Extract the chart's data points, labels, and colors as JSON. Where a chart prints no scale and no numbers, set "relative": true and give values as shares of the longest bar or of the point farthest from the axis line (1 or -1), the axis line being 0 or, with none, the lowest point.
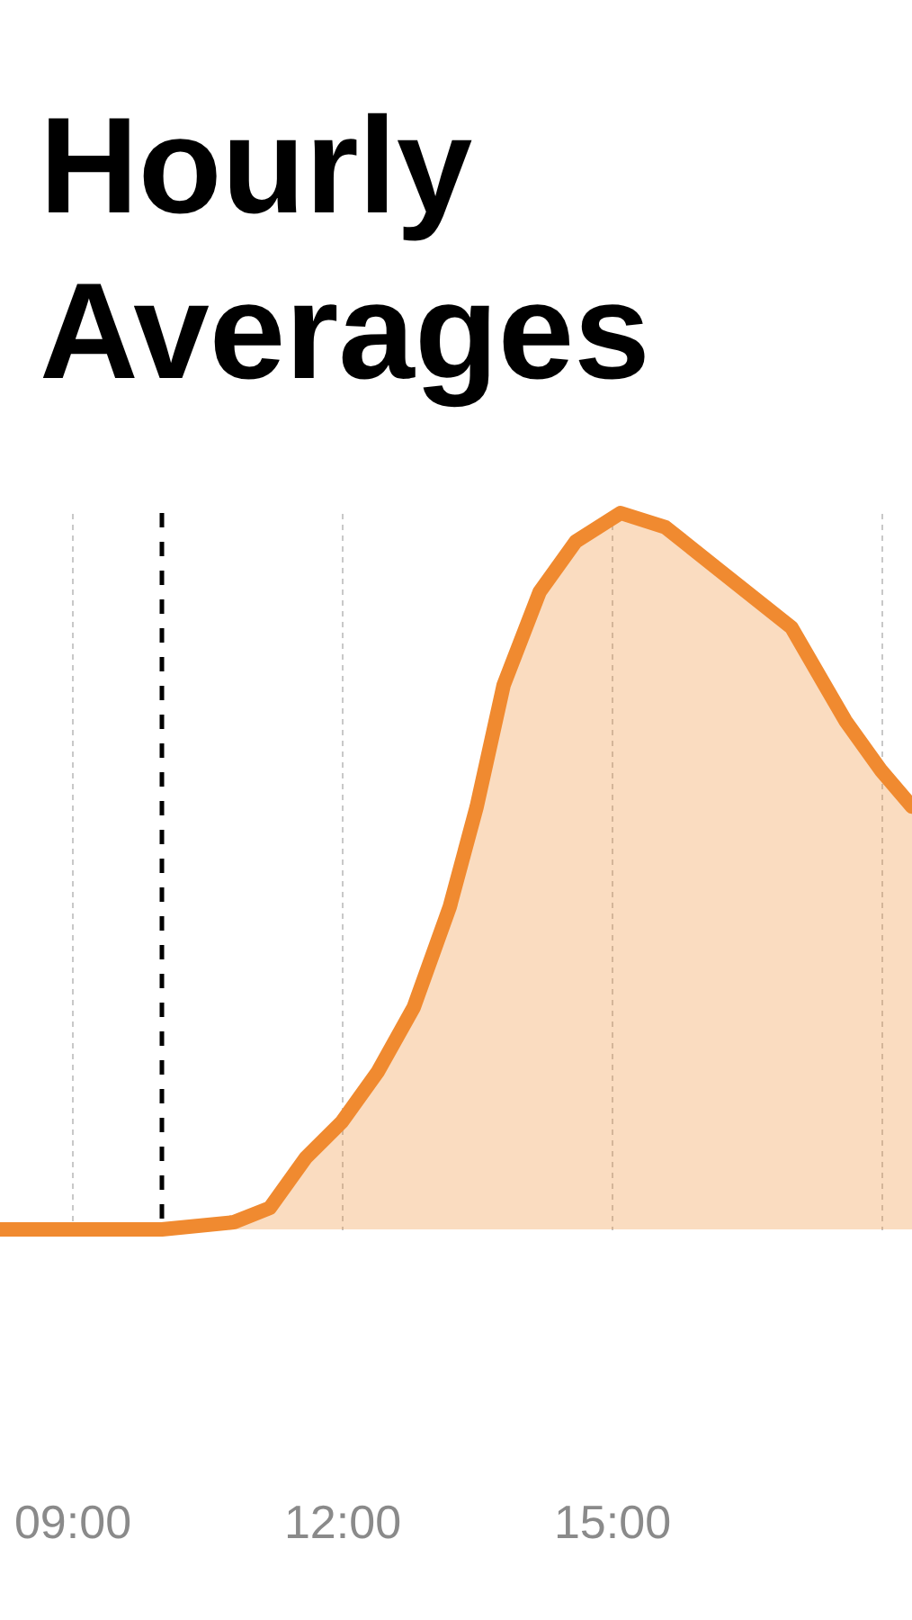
{
  "chart_data": {
    "type": "area",
    "title": "Hourly Averages",
    "relative": true,
    "x": [
      8.2,
      9,
      10,
      10.8,
      11.2,
      11.6,
      12,
      12.4,
      12.8,
      13.2,
      13.5,
      13.8,
      14.2,
      14.6,
      15.1,
      15.6,
      16.2,
      17,
      17.6,
      18,
      18.34
    ],
    "series": [
      {
        "color": "#f08a30",
        "values": [
          0,
          0,
          0,
          0.01,
          0.03,
          0.1,
          0.15,
          0.22,
          0.31,
          0.45,
          0.59,
          0.76,
          0.89,
          0.96,
          1,
          0.98,
          0.92,
          0.84,
          0.71,
          0.64,
          0.59
        ]
      }
    ],
    "xlim": [
      8.2,
      18.34
    ],
    "xticks": [
      {
        "value": 9,
        "label": "09:00"
      },
      {
        "value": 12,
        "label": "12:00"
      },
      {
        "value": 15,
        "label": "15:00"
      },
      {
        "value": 18,
        "label": null
      }
    ],
    "grid": "x",
    "line_style": "solid",
    "ref_lines": [
      {
        "axis": "x",
        "value": 10,
        "label": null,
        "line_style": "dashed",
        "color": "#000000"
      }
    ]
  }
}
